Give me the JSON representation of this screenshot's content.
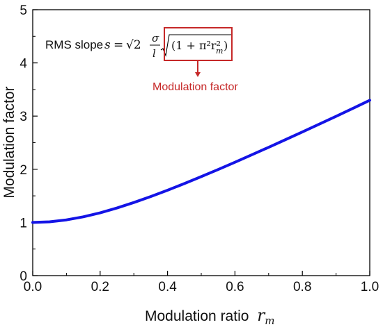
{
  "chart_data": {
    "type": "line",
    "xlabel": "Modulation ratio",
    "xlabel_symbol": "r",
    "xlabel_subscript": "m",
    "ylabel": "Modulation factor",
    "xlim": [
      0.0,
      1.0
    ],
    "ylim": [
      0,
      5
    ],
    "x_ticks": [
      "0.0",
      "0.2",
      "0.4",
      "0.6",
      "0.8",
      "1.0"
    ],
    "y_ticks": [
      "0",
      "1",
      "2",
      "3",
      "4",
      "5"
    ],
    "grid": false,
    "line_color": "#1414e6",
    "series": [
      {
        "x": [
          0.0,
          0.05,
          0.1,
          0.15,
          0.2,
          0.25,
          0.3,
          0.35,
          0.4,
          0.45,
          0.5,
          0.55,
          0.6,
          0.65,
          0.7,
          0.75,
          0.8,
          0.85,
          0.9,
          0.95,
          1.0
        ],
        "values": [
          1.0,
          1.012,
          1.048,
          1.106,
          1.181,
          1.272,
          1.375,
          1.487,
          1.606,
          1.731,
          1.862,
          1.995,
          2.132,
          2.272,
          2.413,
          2.557,
          2.702,
          2.848,
          2.996,
          3.145,
          3.297
        ]
      }
    ],
    "annotation": {
      "text": "RMS slope",
      "formula": {
        "s": "s",
        "eq": "=",
        "sqrt2": "√2",
        "sigma": "σ",
        "l": "l",
        "inner": "(1 + π²r²",
        "inner_sub": "m",
        "close": ")"
      },
      "highlight_label": "Modulation factor",
      "highlight_color": "#c62828"
    }
  }
}
